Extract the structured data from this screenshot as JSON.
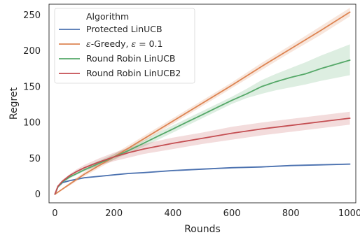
{
  "chart_data": {
    "type": "line",
    "xlabel": "Rounds",
    "ylabel": "Regret",
    "xlim": [
      -20,
      1020
    ],
    "ylim": [
      -12,
      265
    ],
    "xticks": [
      0,
      200,
      400,
      600,
      800,
      1000
    ],
    "yticks": [
      0,
      50,
      100,
      150,
      200,
      250
    ],
    "grid": false,
    "legend": {
      "title": "Algorithm",
      "placement": "upper-left"
    },
    "series": [
      {
        "name": "Protected LinUCB",
        "color": "#4c72b0",
        "x": [
          0,
          10,
          25,
          50,
          75,
          100,
          150,
          200,
          250,
          300,
          400,
          500,
          600,
          700,
          800,
          900,
          1000
        ],
        "y": [
          0,
          10,
          16,
          19,
          21,
          23,
          25,
          27,
          29,
          30,
          33,
          35,
          37,
          38,
          40,
          41,
          42
        ],
        "lower": [
          0,
          9,
          15,
          18,
          20,
          22,
          24,
          26,
          28,
          29,
          32,
          34,
          36,
          37,
          39,
          40,
          41
        ],
        "upper": [
          0,
          11,
          17,
          20,
          22,
          24,
          26,
          28,
          30,
          31,
          34,
          36,
          38,
          39,
          41,
          42,
          43
        ]
      },
      {
        "name": "ε-Greedy, ε = 0.1",
        "color": "#dd8452",
        "x": [
          0,
          50,
          100,
          200,
          300,
          400,
          500,
          600,
          700,
          800,
          900,
          1000
        ],
        "y": [
          0,
          14,
          28,
          52,
          77,
          102,
          127,
          152,
          178,
          203,
          228,
          254
        ],
        "lower": [
          0,
          12,
          25,
          48,
          73,
          98,
          123,
          148,
          173,
          198,
          222,
          248
        ],
        "upper": [
          0,
          16,
          31,
          56,
          81,
          106,
          131,
          156,
          183,
          208,
          234,
          260
        ]
      },
      {
        "name": "Round Robin LinUCB",
        "color": "#55a868",
        "x": [
          0,
          10,
          25,
          50,
          75,
          100,
          150,
          200,
          250,
          300,
          350,
          400,
          450,
          500,
          550,
          600,
          650,
          700,
          750,
          800,
          850,
          900,
          950,
          1000
        ],
        "y": [
          0,
          10,
          17,
          24,
          29,
          34,
          43,
          52,
          61,
          71,
          81,
          91,
          101,
          111,
          121,
          131,
          140,
          150,
          157,
          163,
          168,
          175,
          181,
          187
        ],
        "lower": [
          0,
          9,
          15,
          22,
          27,
          32,
          40,
          48,
          57,
          66,
          76,
          86,
          96,
          106,
          116,
          126,
          134,
          140,
          145,
          149,
          153,
          158,
          162,
          166
        ],
        "upper": [
          0,
          11,
          19,
          27,
          33,
          38,
          47,
          56,
          65,
          75,
          86,
          96,
          106,
          116,
          126,
          136,
          147,
          159,
          168,
          176,
          184,
          193,
          201,
          209
        ]
      },
      {
        "name": "Round Robin LinUCB2",
        "color": "#c44e52",
        "x": [
          0,
          10,
          25,
          50,
          75,
          100,
          150,
          200,
          250,
          300,
          400,
          500,
          600,
          700,
          800,
          900,
          1000
        ],
        "y": [
          0,
          11,
          18,
          26,
          32,
          37,
          45,
          52,
          58,
          63,
          71,
          78,
          85,
          91,
          96,
          101,
          106
        ],
        "lower": [
          0,
          10,
          16,
          24,
          29,
          33,
          40,
          46,
          51,
          56,
          63,
          70,
          76,
          82,
          87,
          92,
          97
        ],
        "upper": [
          0,
          12,
          20,
          28,
          35,
          41,
          50,
          58,
          65,
          70,
          79,
          86,
          94,
          100,
          105,
          110,
          115
        ]
      }
    ]
  }
}
